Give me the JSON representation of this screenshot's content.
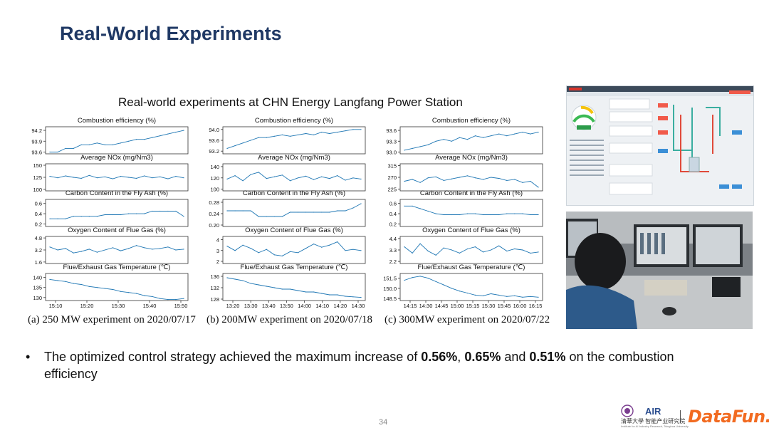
{
  "slide": {
    "title": "Real-World Experiments",
    "subtitle": "Real-world experiments at CHN Energy Langfang Power Station",
    "page_number": "34"
  },
  "bullet": {
    "pre": "The optimized control strategy achieved the maximum increase of ",
    "v1": "0.56%",
    "sep1": ", ",
    "v2": "0.65%",
    "sep2": " and ",
    "v3": "0.51%",
    "post": " on the combustion efficiency"
  },
  "logos": {
    "air": "AIR",
    "air_cn": "清華大學 智能产业研究院",
    "air_en": "Institute for AI Industry Research, Tsinghua University",
    "datafun": "DataFun."
  },
  "colors": {
    "title": "#1f3864",
    "line": "#1f77b4",
    "datafun": "#f26b21"
  },
  "chart_data": [
    {
      "type": "line",
      "caption": "(a) 250 MW experiment on 2020/07/17",
      "x_ticks": [
        "15:10",
        "15:20",
        "15:30",
        "15:40",
        "15:50"
      ],
      "subplots": [
        {
          "title": "Combustion efficiency (%)",
          "yticks": [
            "94.2",
            "93.9",
            "93.6"
          ],
          "ylim": [
            93.55,
            94.3
          ],
          "values": [
            93.6,
            93.6,
            93.7,
            93.7,
            93.8,
            93.8,
            93.85,
            93.8,
            93.8,
            93.85,
            93.9,
            93.95,
            93.95,
            94.0,
            94.05,
            94.1,
            94.15,
            94.2
          ]
        },
        {
          "title": "Average NOx (mg/Nm3)",
          "yticks": [
            "150",
            "125",
            "100"
          ],
          "ylim": [
            97,
            153
          ],
          "values": [
            127,
            124,
            128,
            125,
            123,
            129,
            124,
            126,
            122,
            127,
            125,
            123,
            128,
            124,
            126,
            122,
            127,
            124
          ]
        },
        {
          "title": "Carbon Content in the Fly Ash (%)",
          "yticks": [
            "0.6",
            "0.4",
            "0.2"
          ],
          "ylim": [
            0.15,
            0.68
          ],
          "values": [
            0.3,
            0.3,
            0.3,
            0.35,
            0.35,
            0.35,
            0.35,
            0.38,
            0.38,
            0.38,
            0.4,
            0.4,
            0.4,
            0.45,
            0.45,
            0.45,
            0.45,
            0.35
          ]
        },
        {
          "title": "Oxygen Content of Flue Gas (%)",
          "yticks": [
            "4.8",
            "3.2",
            "1.6"
          ],
          "ylim": [
            1.4,
            5.0
          ],
          "values": [
            3.6,
            3.2,
            3.4,
            2.8,
            3.0,
            3.3,
            2.9,
            3.2,
            3.5,
            3.1,
            3.4,
            3.8,
            3.5,
            3.3,
            3.4,
            3.6,
            3.2,
            3.3
          ]
        },
        {
          "title": "Flue/Exhaust Gas Temperature (℃)",
          "yticks": [
            "140",
            "135",
            "130"
          ],
          "ylim": [
            128.5,
            142
          ],
          "values": [
            139,
            138.5,
            138,
            137,
            136.5,
            135.5,
            135,
            134.5,
            134,
            133,
            132.5,
            132,
            131,
            130.5,
            129.5,
            129,
            129,
            129.5
          ]
        }
      ]
    },
    {
      "type": "line",
      "caption": "(b) 200MW experiment on 2020/07/18",
      "x_ticks": [
        "13:20",
        "13:30",
        "13:40",
        "13:50",
        "14:00",
        "14:10",
        "14:20",
        "14:30"
      ],
      "subplots": [
        {
          "title": "Combustion efficiency (%)",
          "yticks": [
            "94.0",
            "93.6",
            "93.2"
          ],
          "ylim": [
            93.1,
            94.1
          ],
          "values": [
            93.3,
            93.4,
            93.5,
            93.6,
            93.7,
            93.7,
            93.75,
            93.8,
            93.75,
            93.8,
            93.85,
            93.8,
            93.9,
            93.85,
            93.9,
            93.95,
            94.0,
            94.0
          ]
        },
        {
          "title": "Average NOx (mg/Nm3)",
          "yticks": [
            "140",
            "120",
            "100"
          ],
          "ylim": [
            97,
            145
          ],
          "values": [
            118,
            124,
            115,
            126,
            130,
            119,
            122,
            125,
            115,
            120,
            123,
            117,
            122,
            119,
            124,
            116,
            120,
            118
          ]
        },
        {
          "title": "Carbon Content in the Fly Ash (%)",
          "yticks": [
            "0.28",
            "0.24",
            "0.20"
          ],
          "ylim": [
            0.195,
            0.29
          ],
          "values": [
            0.25,
            0.25,
            0.25,
            0.25,
            0.23,
            0.23,
            0.23,
            0.23,
            0.245,
            0.245,
            0.245,
            0.245,
            0.245,
            0.245,
            0.25,
            0.25,
            0.26,
            0.275
          ]
        },
        {
          "title": "Oxygen Content of Flue Gas (%)",
          "yticks": [
            "4",
            "3",
            "2"
          ],
          "ylim": [
            1.8,
            4.3
          ],
          "values": [
            3.4,
            3.0,
            3.5,
            3.2,
            2.8,
            3.1,
            2.6,
            2.5,
            2.9,
            2.8,
            3.2,
            3.6,
            3.3,
            3.5,
            3.8,
            3.0,
            3.1,
            3.0
          ]
        },
        {
          "title": "Flue/Exhaust Gas Temperature (℃)",
          "yticks": [
            "136",
            "132",
            "128"
          ],
          "ylim": [
            127.5,
            137
          ],
          "values": [
            135.5,
            135,
            134.5,
            133.5,
            133,
            132.5,
            132,
            131.5,
            131.5,
            131,
            130.5,
            130.5,
            130,
            129.5,
            129.5,
            129,
            128.8,
            128.6
          ]
        }
      ]
    },
    {
      "type": "line",
      "caption": "(c) 300MW experiment on 2020/07/22",
      "x_ticks": [
        "14:15",
        "14:30",
        "14:45",
        "15:00",
        "15:15",
        "15:30",
        "15:45",
        "16:00",
        "16:15"
      ],
      "subplots": [
        {
          "title": "Combustion efficiency (%)",
          "yticks": [
            "93.6",
            "93.3",
            "93.0"
          ],
          "ylim": [
            92.95,
            93.7
          ],
          "values": [
            93.05,
            93.1,
            93.15,
            93.2,
            93.3,
            93.35,
            93.3,
            93.4,
            93.35,
            93.45,
            93.4,
            93.45,
            93.5,
            93.45,
            93.5,
            93.55,
            93.5,
            93.55
          ]
        },
        {
          "title": "Average NOx (mg/Nm3)",
          "yticks": [
            "315",
            "270",
            "225"
          ],
          "ylim": [
            218,
            322
          ],
          "values": [
            255,
            262,
            250,
            268,
            272,
            258,
            264,
            270,
            276,
            268,
            262,
            270,
            266,
            258,
            262,
            250,
            255,
            232
          ]
        },
        {
          "title": "Carbon Content in the Fly Ash (%)",
          "yticks": [
            "0.6",
            "0.4",
            "0.2"
          ],
          "ylim": [
            0.15,
            0.68
          ],
          "values": [
            0.55,
            0.55,
            0.5,
            0.45,
            0.4,
            0.38,
            0.38,
            0.38,
            0.4,
            0.4,
            0.38,
            0.38,
            0.38,
            0.4,
            0.4,
            0.4,
            0.38,
            0.38
          ]
        },
        {
          "title": "Oxygen Content of Flue Gas (%)",
          "yticks": [
            "4.4",
            "3.3",
            "2.2"
          ],
          "ylim": [
            2.0,
            4.6
          ],
          "values": [
            3.6,
            3.0,
            3.9,
            3.2,
            2.8,
            3.5,
            3.3,
            3.0,
            3.4,
            3.6,
            3.1,
            3.3,
            3.7,
            3.2,
            3.4,
            3.3,
            3.0,
            3.1
          ]
        },
        {
          "title": "Flue/Exhaust Gas Temperature (℃)",
          "yticks": [
            "151.5",
            "150.0",
            "148.5"
          ],
          "ylim": [
            148.2,
            152.2
          ],
          "values": [
            151.2,
            151.6,
            151.8,
            151.5,
            151.0,
            150.5,
            150.0,
            149.6,
            149.3,
            149.0,
            148.9,
            149.2,
            149.0,
            148.8,
            148.9,
            148.7,
            148.8,
            148.7
          ]
        }
      ]
    }
  ]
}
